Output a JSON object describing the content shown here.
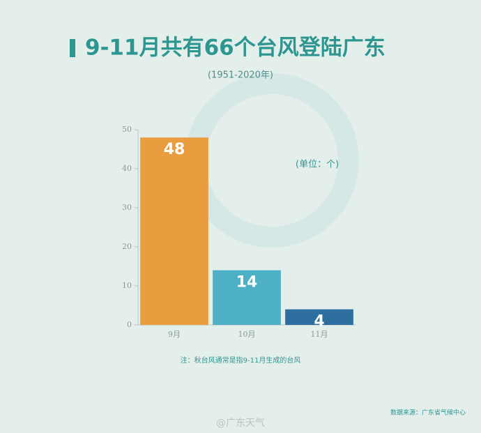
{
  "chart_data": {
    "type": "bar",
    "title": "9-11月共有66个台风登陆广东",
    "subtitle": "(1951-2020年)",
    "annotation": "(单位：个)",
    "note": "注：秋台风通常是指9-11月生成的台风",
    "source": "数据来源：广东省气候中心",
    "watermark": "@广东天气",
    "categories": [
      "9月",
      "10月",
      "11月"
    ],
    "values": [
      48,
      14,
      4
    ],
    "colors": [
      "#e99d3f",
      "#4eb0c6",
      "#2d6f9e"
    ],
    "ylim": [
      0,
      50
    ],
    "yticks": [
      0,
      10,
      20,
      30,
      40,
      50
    ]
  }
}
